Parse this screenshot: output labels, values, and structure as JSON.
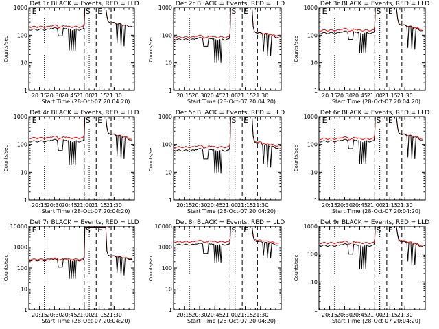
{
  "figure": {
    "background": "#ffffff",
    "colors": {
      "events": "#000000",
      "lld": "#ff0000",
      "axes": "#000000"
    }
  },
  "chart_data": [
    {
      "type": "line",
      "title": "Det 1r BLACK = Events, RED = LLD",
      "ylabel": "Counts/sec",
      "xlabel": "Start Time (28-Oct-07 20:04:20)",
      "x_ticks": [
        "20:15",
        "20:30",
        "20:45",
        "21:00",
        "21:15",
        "21:30"
      ],
      "y_ticks": [
        "1",
        "10",
        "100",
        "1000"
      ],
      "yscale": "log",
      "ylim": [
        1,
        1000
      ],
      "markers": [
        "E",
        "S",
        "E"
      ],
      "series": [
        {
          "name": "Events",
          "color": "#000000",
          "baseline": 160,
          "dips": [
            [
              20.58,
              95
            ],
            [
              20.62,
              95
            ],
            [
              20.75,
              28
            ],
            [
              20.78,
              28
            ],
            [
              20.82,
              28
            ],
            [
              20.85,
              28
            ]
          ],
          "rise": 1000,
          "post": [
            21.5,
            300,
            21.7,
            200
          ],
          "post_dips": [
            [
              21.55,
              50
            ],
            [
              21.62,
              40
            ],
            [
              21.66,
              40
            ]
          ]
        },
        {
          "name": "LLD",
          "color": "#ff0000",
          "baseline": 200,
          "dips": [],
          "rise": 1000,
          "post": [
            21.5,
            300,
            21.7,
            200
          ],
          "post_dips": []
        }
      ]
    },
    {
      "type": "line",
      "title": "Det 2r BLACK = Events, RED = LLD",
      "ylabel": "Counts/sec",
      "xlabel": "Start Time (28-Oct-07 20:04:20)",
      "x_ticks": [
        "20:15",
        "20:30",
        "20:45",
        "21:00",
        "21:15",
        "21:30"
      ],
      "y_ticks": [
        "1",
        "10",
        "100",
        "1000"
      ],
      "yscale": "log",
      "ylim": [
        1,
        1000
      ],
      "markers": [
        "S",
        "E"
      ],
      "series": [
        {
          "name": "Events",
          "color": "#000000",
          "baseline": 70,
          "dips": [
            [
              20.58,
              40
            ],
            [
              20.62,
              40
            ],
            [
              20.75,
              10
            ],
            [
              20.78,
              10
            ],
            [
              20.82,
              12
            ],
            [
              20.85,
              10
            ]
          ],
          "rise": 1000,
          "post": [
            21.5,
            130,
            21.7,
            80
          ],
          "post_dips": [
            [
              21.55,
              25
            ],
            [
              21.62,
              18
            ],
            [
              21.66,
              18
            ]
          ]
        },
        {
          "name": "LLD",
          "color": "#ff0000",
          "baseline": 85,
          "dips": [],
          "rise": 1000,
          "post": [
            21.5,
            130,
            21.7,
            95
          ],
          "post_dips": []
        }
      ]
    },
    {
      "type": "line",
      "title": "Det 3r BLACK = Events, RED = LLD",
      "ylabel": "Counts/sec",
      "xlabel": "Start Time (28-Oct-07 20:04:20)",
      "x_ticks": [
        "20:15",
        "20:30",
        "20:45",
        "21:00",
        "21:15",
        "21:30"
      ],
      "y_ticks": [
        "1",
        "10",
        "100",
        "1000"
      ],
      "yscale": "log",
      "ylim": [
        1,
        1000
      ],
      "markers": [
        "E",
        "S",
        "E"
      ],
      "series": [
        {
          "name": "Events",
          "color": "#000000",
          "baseline": 120,
          "dips": [
            [
              20.58,
              70
            ],
            [
              20.62,
              70
            ],
            [
              20.75,
              22
            ],
            [
              20.78,
              22
            ],
            [
              20.82,
              22
            ],
            [
              20.85,
              22
            ]
          ],
          "rise": 1000,
          "post": [
            21.5,
            250,
            21.7,
            140
          ],
          "post_dips": [
            [
              21.55,
              35
            ],
            [
              21.62,
              30
            ],
            [
              21.66,
              30
            ]
          ]
        },
        {
          "name": "LLD",
          "color": "#ff0000",
          "baseline": 150,
          "dips": [],
          "rise": 1000,
          "post": [
            21.5,
            250,
            21.7,
            160
          ],
          "post_dips": []
        }
      ]
    },
    {
      "type": "line",
      "title": "Det 4r BLACK = Events, RED = LLD",
      "ylabel": "Counts/sec",
      "xlabel": "Start Time (28-Oct-07 20:04:20)",
      "x_ticks": [
        "20:15",
        "20:30",
        "20:45",
        "21:00",
        "21:15",
        "21:30"
      ],
      "y_ticks": [
        "1",
        "10",
        "100",
        "1000"
      ],
      "yscale": "log",
      "ylim": [
        1,
        1000
      ],
      "markers": [
        "E",
        "S",
        "E"
      ],
      "series": [
        {
          "name": "Events",
          "color": "#000000",
          "baseline": 130,
          "dips": [
            [
              20.58,
              60
            ],
            [
              20.62,
              60
            ],
            [
              20.75,
              18
            ],
            [
              20.78,
              18
            ],
            [
              20.82,
              20
            ],
            [
              20.85,
              18
            ]
          ],
          "rise": 1000,
          "post": [
            21.5,
            250,
            21.7,
            140
          ],
          "post_dips": [
            [
              21.55,
              40
            ],
            [
              21.62,
              30
            ],
            [
              21.66,
              30
            ]
          ]
        },
        {
          "name": "LLD",
          "color": "#ff0000",
          "baseline": 170,
          "dips": [],
          "rise": 1000,
          "post": [
            21.5,
            250,
            21.7,
            160
          ],
          "post_dips": []
        }
      ]
    },
    {
      "type": "line",
      "title": "Det 5r BLACK = Events, RED = LLD",
      "ylabel": "Counts/sec",
      "xlabel": "Start Time (28-Oct-07 20:04:20)",
      "x_ticks": [
        "20:15",
        "20:30",
        "20:45",
        "21:00",
        "21:15",
        "21:30"
      ],
      "y_ticks": [
        "1",
        "10",
        "100",
        "1000"
      ],
      "yscale": "log",
      "ylim": [
        1,
        1000
      ],
      "markers": [
        "S",
        "E"
      ],
      "series": [
        {
          "name": "Events",
          "color": "#000000",
          "baseline": 60,
          "dips": [
            [
              20.58,
              30
            ],
            [
              20.62,
              30
            ],
            [
              20.75,
              9
            ],
            [
              20.78,
              9
            ],
            [
              20.82,
              10
            ],
            [
              20.85,
              9
            ]
          ],
          "rise": 1000,
          "post": [
            21.5,
            120,
            21.7,
            70
          ],
          "post_dips": [
            [
              21.55,
              20
            ],
            [
              21.62,
              15
            ],
            [
              21.66,
              15
            ]
          ]
        },
        {
          "name": "LLD",
          "color": "#ff0000",
          "baseline": 80,
          "dips": [],
          "rise": 1000,
          "post": [
            21.5,
            130,
            21.7,
            85
          ],
          "post_dips": []
        }
      ]
    },
    {
      "type": "line",
      "title": "Det 6r BLACK = Events, RED = LLD",
      "ylabel": "Counts/sec",
      "xlabel": "Start Time (28-Oct-07 20:04:20)",
      "x_ticks": [
        "20:15",
        "20:30",
        "20:45",
        "21:00",
        "21:15",
        "21:30"
      ],
      "y_ticks": [
        "1",
        "10",
        "100",
        "1000"
      ],
      "yscale": "log",
      "ylim": [
        1,
        1000
      ],
      "markers": [
        "E",
        "S",
        "E"
      ],
      "series": [
        {
          "name": "Events",
          "color": "#000000",
          "baseline": 130,
          "dips": [
            [
              20.58,
              70
            ],
            [
              20.62,
              70
            ],
            [
              20.75,
              20
            ],
            [
              20.78,
              20
            ],
            [
              20.82,
              22
            ],
            [
              20.85,
              20
            ]
          ],
          "rise": 1000,
          "post": [
            21.5,
            250,
            21.7,
            140
          ],
          "post_dips": [
            [
              21.55,
              35
            ],
            [
              21.62,
              30
            ],
            [
              21.66,
              30
            ]
          ]
        },
        {
          "name": "LLD",
          "color": "#ff0000",
          "baseline": 160,
          "dips": [],
          "rise": 1000,
          "post": [
            21.5,
            250,
            21.7,
            160
          ],
          "post_dips": []
        }
      ]
    },
    {
      "type": "line",
      "title": "Det 7r BLACK = Events, RED = LLD",
      "ylabel": "Counts/sec",
      "xlabel": "Start Time (28-Oct-07 20:04:20)",
      "x_ticks": [
        "20:15",
        "20:30",
        "20:45",
        "21:00",
        "21:15",
        "21:30"
      ],
      "y_ticks": [
        "1",
        "10",
        "100",
        "1000",
        "10000"
      ],
      "yscale": "log",
      "ylim": [
        1,
        10000
      ],
      "markers": [
        "E",
        "S",
        "E"
      ],
      "series": [
        {
          "name": "Events",
          "color": "#000000",
          "baseline": 230,
          "dips": [
            [
              20.58,
              110
            ],
            [
              20.62,
              110
            ],
            [
              20.75,
              30
            ],
            [
              20.78,
              30
            ],
            [
              20.82,
              30
            ],
            [
              20.85,
              30
            ]
          ],
          "rise": 9000,
          "post": [
            21.5,
            400,
            21.7,
            250
          ],
          "post_dips": [
            [
              21.55,
              60
            ],
            [
              21.62,
              45
            ],
            [
              21.66,
              45
            ]
          ]
        },
        {
          "name": "LLD",
          "color": "#ff0000",
          "baseline": 260,
          "dips": [],
          "rise": 9000,
          "post": [
            21.5,
            400,
            21.7,
            270
          ],
          "post_dips": []
        }
      ]
    },
    {
      "type": "line",
      "title": "Det 8r BLACK = Events, RED = LLD",
      "ylabel": "Counts/sec",
      "xlabel": "Start Time (28-Oct-07 20:04:20)",
      "x_ticks": [
        "20:15",
        "20:30",
        "20:45",
        "21:00",
        "21:15",
        "21:30"
      ],
      "y_ticks": [
        "1",
        "10",
        "100",
        "1000",
        "10000"
      ],
      "yscale": "log",
      "ylim": [
        1,
        10000
      ],
      "markers": [
        "S",
        "E"
      ],
      "series": [
        {
          "name": "Events",
          "color": "#000000",
          "baseline": 1300,
          "dips": [
            [
              20.58,
              500
            ],
            [
              20.62,
              500
            ],
            [
              20.75,
              180
            ],
            [
              20.78,
              180
            ],
            [
              20.82,
              200
            ],
            [
              20.85,
              180
            ]
          ],
          "rise": 10000,
          "post": [
            21.5,
            2000,
            21.7,
            1200
          ],
          "post_dips": [
            [
              21.55,
              400
            ],
            [
              21.62,
              300
            ],
            [
              21.66,
              300
            ]
          ]
        },
        {
          "name": "LLD",
          "color": "#ff0000",
          "baseline": 1800,
          "dips": [],
          "rise": 10000,
          "post": [
            21.5,
            2300,
            21.7,
            1500
          ],
          "post_dips": []
        }
      ]
    },
    {
      "type": "line",
      "title": "Det 9r BLACK = Events, RED = LLD",
      "ylabel": "Counts/sec",
      "xlabel": "Start Time (28-Oct-07 20:04:20)",
      "x_ticks": [
        "20:15",
        "20:30",
        "20:45",
        "21:00",
        "21:15",
        "21:30"
      ],
      "y_ticks": [
        "1",
        "10",
        "100",
        "1000"
      ],
      "yscale": "log",
      "ylim": [
        1,
        1000
      ],
      "markers": [
        "S",
        "E"
      ],
      "series": [
        {
          "name": "Events",
          "color": "#000000",
          "baseline": 200,
          "dips": [
            [
              20.58,
              100
            ],
            [
              20.62,
              100
            ],
            [
              20.75,
              28
            ],
            [
              20.78,
              28
            ],
            [
              20.82,
              30
            ],
            [
              20.85,
              28
            ]
          ],
          "rise": 1000,
          "post": [
            21.5,
            300,
            21.7,
            180
          ],
          "post_dips": [
            [
              21.55,
              55
            ],
            [
              21.62,
              40
            ],
            [
              21.66,
              40
            ]
          ]
        },
        {
          "name": "LLD",
          "color": "#ff0000",
          "baseline": 250,
          "dips": [],
          "rise": 1000,
          "post": [
            21.5,
            320,
            21.7,
            200
          ],
          "post_dips": []
        }
      ]
    }
  ]
}
